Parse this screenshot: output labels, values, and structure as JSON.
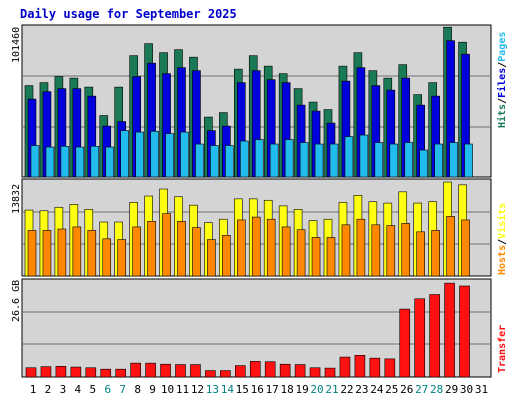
{
  "title": "Daily usage for September 2025",
  "colors": {
    "hits": "#1a7a55",
    "files": "#0000dd",
    "pages": "#22bbee",
    "visits": "#ffff11",
    "hosts": "#ff8800",
    "kbytes": "#ff1111",
    "weekend": "#008080",
    "weekday": "#000000",
    "title": "#0000cc"
  },
  "legend": {
    "top": [
      "Hits",
      "/",
      "Files",
      "/",
      "Pages"
    ],
    "middle": [
      "Hosts",
      "/",
      "Visits"
    ],
    "bottom": [
      "Transfer"
    ]
  },
  "chart_data": [
    {
      "type": "bar",
      "title": "Daily usage for September 2025",
      "ylabel": "Hits/Files/Pages",
      "ymax_label": "101460",
      "ylim": [
        0,
        101460
      ],
      "categories": [
        "1",
        "2",
        "3",
        "4",
        "5",
        "6",
        "7",
        "8",
        "9",
        "10",
        "11",
        "12",
        "13",
        "14",
        "15",
        "16",
        "17",
        "18",
        "19",
        "20",
        "21",
        "22",
        "23",
        "24",
        "25",
        "26",
        "27",
        "28",
        "29",
        "30"
      ],
      "weekend_days": [
        "6",
        "7",
        "13",
        "14",
        "20",
        "21",
        "27",
        "28"
      ],
      "series": [
        {
          "name": "Hits",
          "values": [
            61000,
            63000,
            67000,
            66000,
            60000,
            41000,
            60000,
            81000,
            89000,
            83000,
            85000,
            80000,
            40000,
            43000,
            72000,
            81000,
            74000,
            69000,
            59000,
            50000,
            45000,
            74000,
            83000,
            71000,
            66000,
            75000,
            55000,
            63000,
            100000,
            90000
          ]
        },
        {
          "name": "Files",
          "values": [
            52000,
            57000,
            59000,
            59000,
            54000,
            34000,
            37000,
            67000,
            76000,
            69000,
            73000,
            71000,
            31000,
            34000,
            63000,
            71000,
            65000,
            63000,
            48000,
            44000,
            36000,
            64000,
            73000,
            61000,
            58000,
            66000,
            48000,
            54000,
            91000,
            82000
          ]
        },
        {
          "name": "Pages",
          "values": [
            21000,
            20000,
            20500,
            20000,
            20500,
            20000,
            31000,
            30000,
            30500,
            29000,
            30000,
            22000,
            21000,
            21000,
            24000,
            25000,
            22000,
            25000,
            23000,
            22000,
            22000,
            27000,
            28000,
            23000,
            22000,
            23000,
            18000,
            22000,
            23000,
            22000
          ]
        }
      ]
    },
    {
      "type": "bar",
      "ylabel": "Hosts/Visits",
      "ymax_label": "13832",
      "ylim": [
        0,
        13832
      ],
      "categories": [
        "1",
        "2",
        "3",
        "4",
        "5",
        "6",
        "7",
        "8",
        "9",
        "10",
        "11",
        "12",
        "13",
        "14",
        "15",
        "16",
        "17",
        "18",
        "19",
        "20",
        "21",
        "22",
        "23",
        "24",
        "25",
        "26",
        "27",
        "28",
        "29",
        "30"
      ],
      "series": [
        {
          "name": "Visits",
          "values": [
            9400,
            9300,
            9800,
            10200,
            9500,
            7700,
            7700,
            10500,
            11400,
            12400,
            11300,
            10100,
            7600,
            8100,
            11000,
            11000,
            10800,
            10000,
            9500,
            7900,
            8100,
            10500,
            11500,
            10600,
            10400,
            12000,
            10400,
            10600,
            13400,
            13000
          ]
        },
        {
          "name": "Hosts",
          "values": [
            6500,
            6500,
            6700,
            7000,
            6500,
            5300,
            5200,
            7000,
            7800,
            8900,
            7800,
            6900,
            5200,
            5800,
            8000,
            8400,
            8100,
            7000,
            6600,
            5500,
            5500,
            7300,
            8100,
            7300,
            7200,
            7500,
            6300,
            6500,
            8500,
            8000
          ]
        }
      ]
    },
    {
      "type": "bar",
      "ylabel": "Transfer",
      "ymax_label": "26.6 GB",
      "ylim": [
        0,
        26.6
      ],
      "categories": [
        "1",
        "2",
        "3",
        "4",
        "5",
        "6",
        "7",
        "8",
        "9",
        "10",
        "11",
        "12",
        "13",
        "14",
        "15",
        "16",
        "17",
        "18",
        "19",
        "20",
        "21",
        "22",
        "23",
        "24",
        "25",
        "26",
        "27",
        "28",
        "29",
        "30"
      ],
      "series": [
        {
          "name": "Transfer",
          "values": [
            2.6,
            2.9,
            3.0,
            2.8,
            2.6,
            2.2,
            2.2,
            3.9,
            3.9,
            3.6,
            3.5,
            3.5,
            1.8,
            1.8,
            3.2,
            4.4,
            4.3,
            3.6,
            3.5,
            2.6,
            2.5,
            5.6,
            6.1,
            5.3,
            5.1,
            19.1,
            22.0,
            23.2,
            26.4,
            25.6
          ]
        }
      ],
      "x_tick_labels": [
        "1",
        "2",
        "3",
        "4",
        "5",
        "6",
        "7",
        "8",
        "9",
        "10",
        "11",
        "12",
        "13",
        "14",
        "15",
        "16",
        "17",
        "18",
        "19",
        "20",
        "21",
        "22",
        "23",
        "24",
        "25",
        "26",
        "27",
        "28",
        "29",
        "30",
        "31"
      ]
    }
  ]
}
